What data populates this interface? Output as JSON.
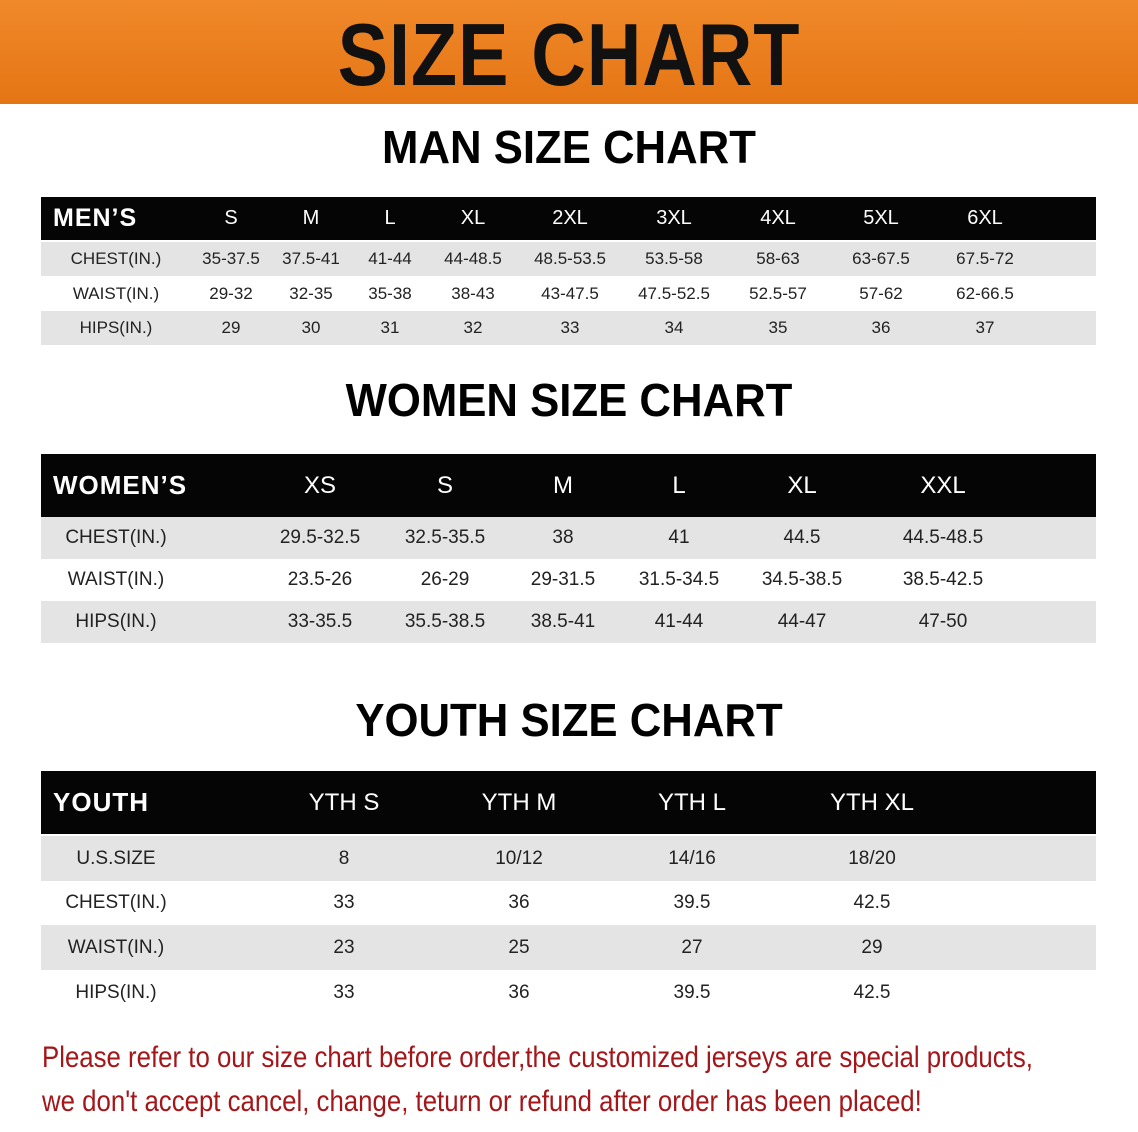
{
  "banner_title": "SIZE CHART",
  "men": {
    "title": "MAN SIZE CHART",
    "header_label": "MEN’S",
    "sizes": [
      "S",
      "M",
      "L",
      "XL",
      "2XL",
      "3XL",
      "4XL",
      "5XL",
      "6XL"
    ],
    "rows": [
      {
        "label": "CHEST(IN.)",
        "values": [
          "35-37.5",
          "37.5-41",
          "41-44",
          "44-48.5",
          "48.5-53.5",
          "53.5-58",
          "58-63",
          "63-67.5",
          "67.5-72"
        ]
      },
      {
        "label": "WAIST(IN.)",
        "values": [
          "29-32",
          "32-35",
          "35-38",
          "38-43",
          "43-47.5",
          "47.5-52.5",
          "52.5-57",
          "57-62",
          "62-66.5"
        ]
      },
      {
        "label": "HIPS(IN.)",
        "values": [
          "29",
          "30",
          "31",
          "32",
          "33",
          "34",
          "35",
          "36",
          "37"
        ]
      }
    ]
  },
  "women": {
    "title": "WOMEN SIZE CHART",
    "header_label": "WOMEN’S",
    "sizes": [
      "XS",
      "S",
      "M",
      "L",
      "XL",
      "XXL"
    ],
    "rows": [
      {
        "label": "CHEST(IN.)",
        "values": [
          "29.5-32.5",
          "32.5-35.5",
          "38",
          "41",
          "44.5",
          "44.5-48.5"
        ]
      },
      {
        "label": "WAIST(IN.)",
        "values": [
          "23.5-26",
          "26-29",
          "29-31.5",
          "31.5-34.5",
          "34.5-38.5",
          "38.5-42.5"
        ]
      },
      {
        "label": "HIPS(IN.)",
        "values": [
          "33-35.5",
          "35.5-38.5",
          "38.5-41",
          "41-44",
          "44-47",
          "47-50"
        ]
      }
    ]
  },
  "youth": {
    "title": "YOUTH SIZE CHART",
    "header_label": "YOUTH",
    "sizes": [
      "YTH S",
      "YTH M",
      "YTH L",
      "YTH XL"
    ],
    "rows": [
      {
        "label": "U.S.SIZE",
        "values": [
          "8",
          "10/12",
          "14/16",
          "18/20"
        ]
      },
      {
        "label": "CHEST(IN.)",
        "values": [
          "33",
          "36",
          "39.5",
          "42.5"
        ]
      },
      {
        "label": "WAIST(IN.)",
        "values": [
          "23",
          "25",
          "27",
          "29"
        ]
      },
      {
        "label": "HIPS(IN.)",
        "values": [
          "33",
          "36",
          "39.5",
          "42.5"
        ]
      }
    ]
  },
  "note": {
    "line1": "Please refer to our size chart before order,the customized jerseys are special products,",
    "line2": "we don't accept cancel, change, teturn or refund after order has been placed!"
  },
  "colors": {
    "banner": "#e97d1c",
    "header_bg": "#050505",
    "row_gray": "#e4e4e4",
    "note": "#a3161a"
  }
}
